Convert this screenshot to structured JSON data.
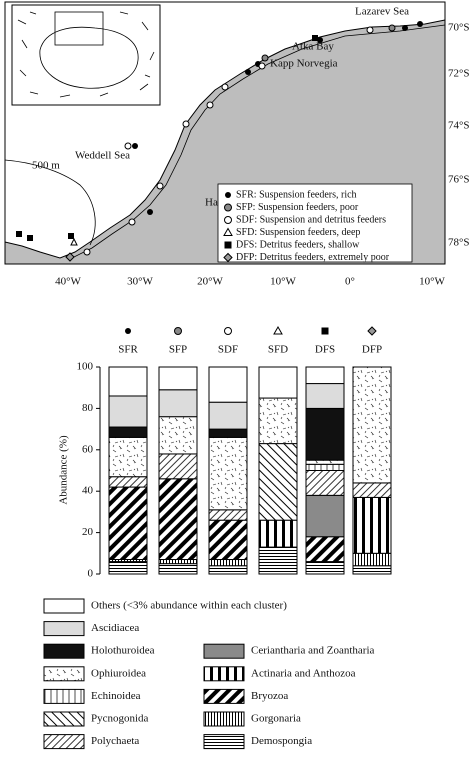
{
  "map": {
    "place_labels": [
      "Lazarev Sea",
      "Atka Bay",
      "Kapp Norvegia",
      "Weddell Sea",
      "500 m",
      "Halley Bay"
    ],
    "lat_labels": [
      "70°S",
      "72°S",
      "74°S",
      "76°S",
      "78°S"
    ],
    "lon_labels": [
      "40°W",
      "30°W",
      "20°W",
      "10°W",
      "0°",
      "10°W"
    ],
    "legend": [
      "SFR: Suspension feeders, rich",
      "SFP: Suspension feeders, poor",
      "SDF: Suspension and detritus feeders",
      "SFD: Suspension feeders, deep",
      "DFS: Detritus feeders, shallow",
      "DFP: Detritus feeders, extremely poor"
    ]
  },
  "chart_data": {
    "type": "stacked_bar",
    "y_label": "Abundance (%)",
    "categories": [
      "SFR",
      "SFP",
      "SDF",
      "SFD",
      "DFS",
      "DFP"
    ],
    "ylim": [
      0,
      100
    ],
    "yticks": [
      0,
      20,
      40,
      60,
      80,
      100
    ],
    "series": [
      {
        "name": "Demospongia",
        "values": [
          6,
          5,
          4,
          13,
          6,
          4
        ]
      },
      {
        "name": "Gorgonaria",
        "values": [
          1,
          2,
          3,
          0,
          0,
          6
        ]
      },
      {
        "name": "Bryozoa",
        "values": [
          35,
          39,
          19,
          0,
          12,
          0
        ]
      },
      {
        "name": "Actinaria and Anthozoa",
        "values": [
          0,
          0,
          0,
          13,
          0,
          27
        ]
      },
      {
        "name": "Ceriantharia and Zoantharia",
        "values": [
          0,
          0,
          0,
          0,
          20,
          0
        ]
      },
      {
        "name": "Polychaeta",
        "values": [
          5,
          12,
          5,
          0,
          12,
          7
        ]
      },
      {
        "name": "Pycnogonida",
        "values": [
          0,
          0,
          0,
          37,
          0,
          0
        ]
      },
      {
        "name": "Echinoidea",
        "values": [
          0,
          0,
          0,
          0,
          3,
          0
        ]
      },
      {
        "name": "Ophiuroidea",
        "values": [
          19,
          18,
          35,
          22,
          2,
          56
        ]
      },
      {
        "name": "Holothuroidea",
        "values": [
          5,
          0,
          4,
          0,
          25,
          0
        ]
      },
      {
        "name": "Ascidiacea",
        "values": [
          15,
          13,
          13,
          0,
          12,
          0
        ]
      },
      {
        "name": "Others (<3% abundance within each cluster)",
        "values": [
          14,
          11,
          17,
          15,
          8,
          0
        ]
      }
    ]
  }
}
